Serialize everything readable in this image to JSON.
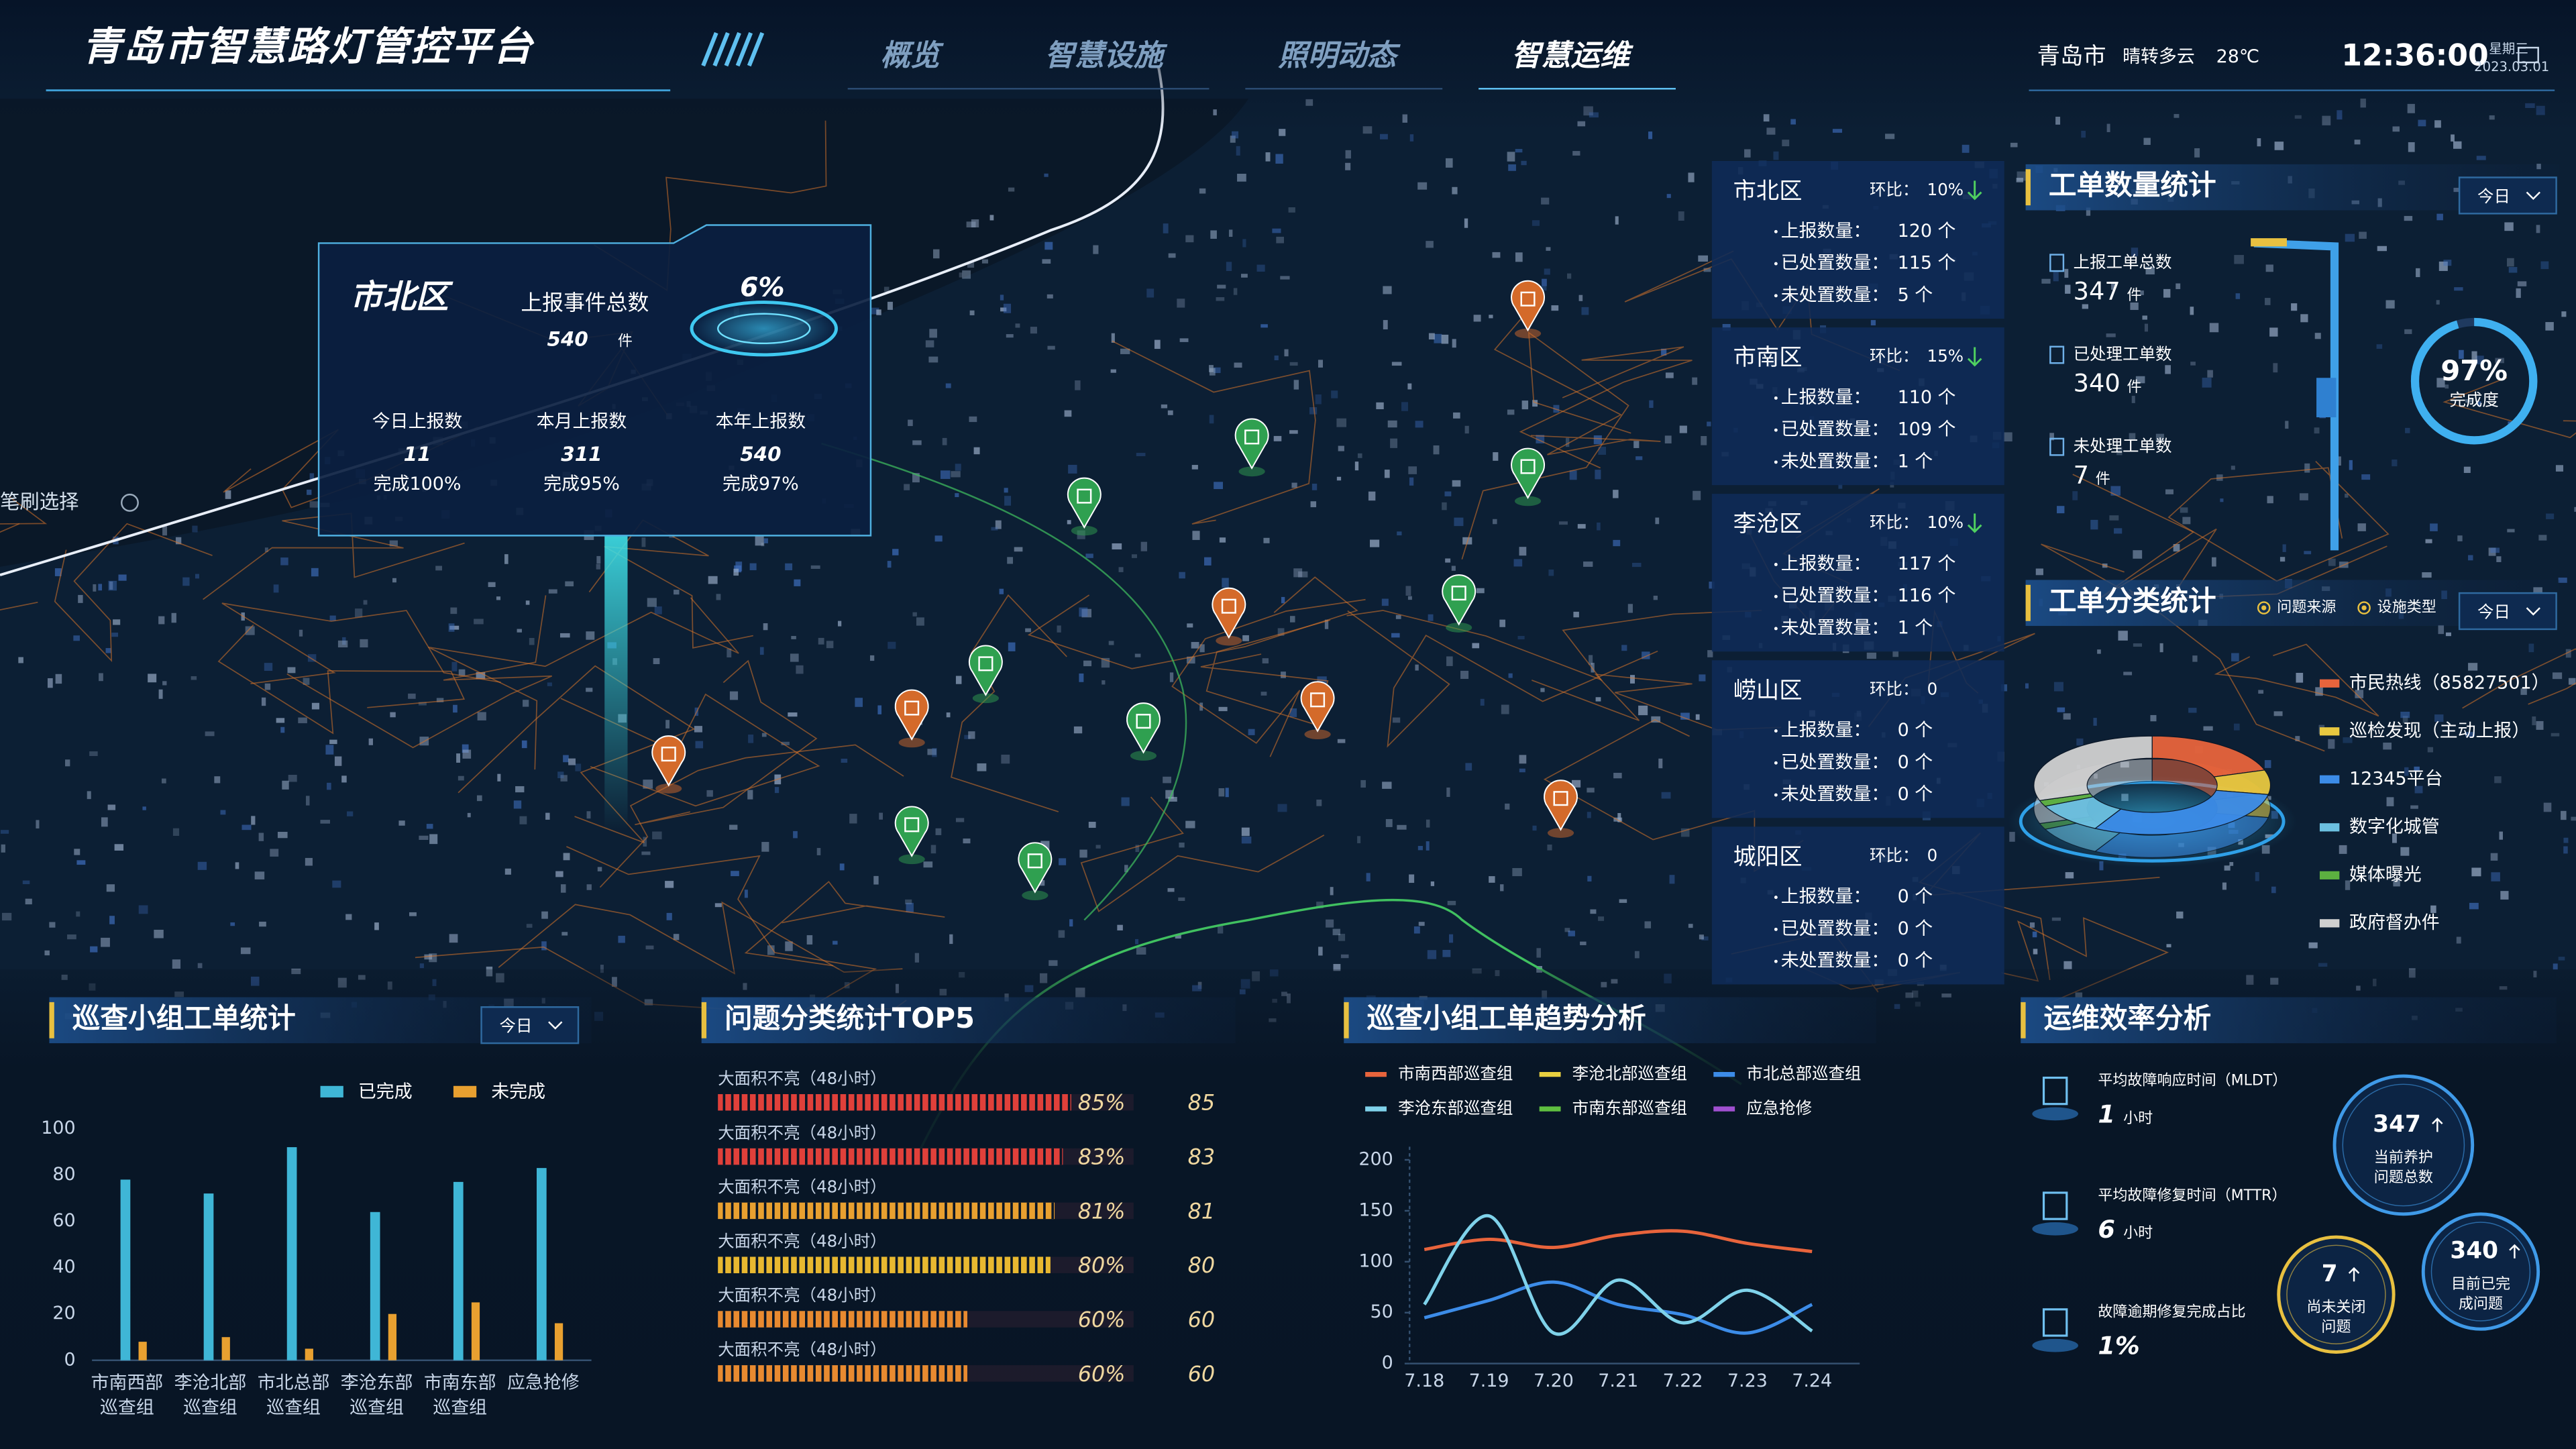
{
  "header": {
    "title": "青岛市智慧路灯管控平台",
    "nav": [
      "概览",
      "智慧设施",
      "照明动态",
      "智慧运维"
    ],
    "active_nav": 3,
    "city": "青岛市",
    "weather": "晴转多云",
    "temperature": "28℃",
    "time": "12:36:00",
    "weekday": "星期三",
    "date": "2023.03.01"
  },
  "map": {
    "tool": "笔刷选择",
    "popup": {
      "district": "市北区",
      "total_label": "上报事件总数",
      "total": "540",
      "unit": "件",
      "percent": "6%",
      "items": [
        {
          "label": "今日上报数",
          "value": "11",
          "note": "完成100%"
        },
        {
          "label": "本月上报数",
          "value": "311",
          "note": "完成95%"
        },
        {
          "label": "本年上报数",
          "value": "540",
          "note": "完成97%"
        }
      ]
    }
  },
  "district_stats": [
    {
      "name": "市北区",
      "ratio_label": "环比：",
      "ratio": "10%",
      "trend": "down",
      "rows": [
        {
          "label": "上报数量：",
          "value": "120 个"
        },
        {
          "label": "已处置数量：",
          "value": "115 个"
        },
        {
          "label": "未处置数量：",
          "value": "5 个"
        }
      ]
    },
    {
      "name": "市南区",
      "ratio_label": "环比：",
      "ratio": "15%",
      "trend": "down",
      "rows": [
        {
          "label": "上报数量：",
          "value": "110 个"
        },
        {
          "label": "已处置数量：",
          "value": "109 个"
        },
        {
          "label": "未处置数量：",
          "value": "1 个"
        }
      ]
    },
    {
      "name": "李沧区",
      "ratio_label": "环比：",
      "ratio": "10%",
      "trend": "down",
      "rows": [
        {
          "label": "上报数量：",
          "value": "117 个"
        },
        {
          "label": "已处置数量：",
          "value": "116 个"
        },
        {
          "label": "未处置数量：",
          "value": "1 个"
        }
      ]
    },
    {
      "name": "崂山区",
      "ratio_label": "环比：",
      "ratio": "0",
      "rows": [
        {
          "label": "上报数量：",
          "value": "0 个"
        },
        {
          "label": "已处置数量：",
          "value": "0 个"
        },
        {
          "label": "未处置数量：",
          "value": "0 个"
        }
      ]
    },
    {
      "name": "城阳区",
      "ratio_label": "环比：",
      "ratio": "0",
      "rows": [
        {
          "label": "上报数量：",
          "value": "0 个"
        },
        {
          "label": "已处置数量：",
          "value": "0 个"
        },
        {
          "label": "未处置数量：",
          "value": "0 个"
        }
      ]
    }
  ],
  "work_orders": {
    "title": "工单数量统计",
    "period": "今日",
    "items": [
      {
        "label": "上报工单总数",
        "value": "347",
        "unit": "件"
      },
      {
        "label": "已处理工单数",
        "value": "340",
        "unit": "件"
      },
      {
        "label": "未处理工单数",
        "value": "7",
        "unit": "件"
      }
    ],
    "completion": "97%",
    "completion_label": "完成度"
  },
  "chart_data": [
    {
      "type": "bar",
      "title": "巡查小组工单统计",
      "period": "今日",
      "categories": [
        "市南西部巡查组",
        "李沧北部巡查组",
        "市北总部巡查组",
        "李沧东部巡查组",
        "市南东部巡查组",
        "应急抢修"
      ],
      "series": [
        {
          "name": "已完成",
          "color": "#3fb6d6",
          "values": [
            78,
            72,
            92,
            64,
            77,
            83
          ]
        },
        {
          "name": "未完成",
          "color": "#e8a030",
          "values": [
            8,
            10,
            5,
            20,
            25,
            16
          ]
        }
      ],
      "ylim": [
        0,
        100
      ],
      "yticks": [
        0,
        20,
        40,
        60,
        80,
        100
      ]
    },
    {
      "type": "bar",
      "horizontal": true,
      "title": "问题分类统计TOP5",
      "categories": [
        "大面积不亮（48小时）",
        "大面积不亮（48小时）",
        "大面积不亮（48小时）",
        "大面积不亮（48小时）",
        "大面积不亮（48小时）",
        "大面积不亮（48小时）"
      ],
      "values": [
        85,
        83,
        81,
        80,
        60,
        60
      ],
      "value_labels": [
        "85%",
        "83%",
        "81%",
        "80%",
        "60%",
        "60%"
      ],
      "colors": [
        "#e0403a",
        "#e0403a",
        "#e8a030",
        "#e8b830",
        "#e88a30",
        "#e88a30"
      ],
      "xlim": [
        0,
        100
      ]
    },
    {
      "type": "line",
      "title": "巡查小组工单趋势分析",
      "x": [
        "7.18",
        "7.19",
        "7.20",
        "7.21",
        "7.22",
        "7.23",
        "7.24"
      ],
      "series": [
        {
          "name": "市南西部巡查组",
          "color": "#e8643c",
          "values": [
            112,
            122,
            114,
            126,
            130,
            118,
            110
          ]
        },
        {
          "name": "李沧北部巡查组",
          "color": "#e8d040",
          "values": [
            null,
            null,
            null,
            null,
            null,
            null,
            null
          ]
        },
        {
          "name": "市北总部巡查组",
          "color": "#3c8ce8",
          "values": [
            45,
            62,
            80,
            58,
            48,
            30,
            58
          ]
        },
        {
          "name": "李沧东部巡查组",
          "color": "#7fd2ea",
          "values": [
            58,
            145,
            30,
            82,
            40,
            72,
            32
          ]
        },
        {
          "name": "市南东部巡查组",
          "color": "#5fbf40",
          "values": [
            null,
            null,
            null,
            null,
            null,
            null,
            null
          ]
        },
        {
          "name": "应急抢修",
          "color": "#a050d0",
          "values": [
            null,
            null,
            null,
            null,
            null,
            null,
            null
          ]
        }
      ],
      "ylim": [
        0,
        200
      ],
      "yticks": [
        0,
        50,
        100,
        150,
        200
      ]
    },
    {
      "type": "pie",
      "title": "工单分类统计",
      "filters": [
        "问题来源",
        "设施类型"
      ],
      "period": "今日",
      "categories": [
        "市民热线（85827501）",
        "巡检发现（主动上报）",
        "12345平台",
        "数字化城管",
        "媒体曝光",
        "政府督办件"
      ],
      "values": [
        20,
        8,
        30,
        10,
        2,
        30
      ],
      "colors": [
        "#e8643c",
        "#e8c840",
        "#3c8ce8",
        "#6cc0e0",
        "#5cb040",
        "#d0d0d0"
      ]
    }
  ],
  "efficiency": {
    "title": "运维效率分析",
    "items": [
      {
        "label": "平均故障响应时间（MLDT）",
        "value": "1",
        "unit": "小时"
      },
      {
        "label": "平均故障修复时间（MTTR）",
        "value": "6",
        "unit": "小时"
      },
      {
        "label": "故障逾期修复完成占比",
        "value": "1%"
      }
    ],
    "circles": [
      {
        "value": "347",
        "label": "当前养护问题总数"
      },
      {
        "value": "7",
        "label": "尚未关闭问题"
      },
      {
        "value": "340",
        "label": "目前已完成问题"
      }
    ]
  }
}
